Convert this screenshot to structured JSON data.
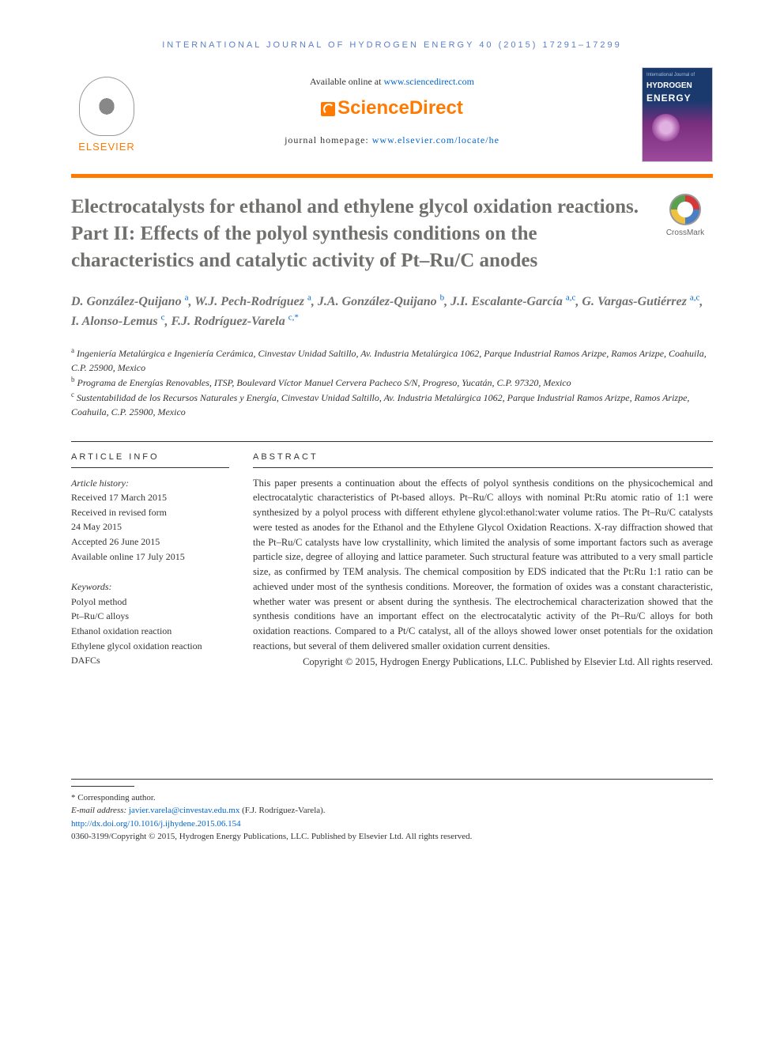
{
  "journal_header": "INTERNATIONAL JOURNAL OF HYDROGEN ENERGY 40 (2015) 17291–17299",
  "available_prefix": "Available online at ",
  "available_link": "www.sciencedirect.com",
  "sciencedirect": "ScienceDirect",
  "homepage_prefix": "journal homepage: ",
  "homepage_link": "www.elsevier.com/locate/he",
  "elsevier_label": "ELSEVIER",
  "cover": {
    "line1": "International Journal of",
    "line2": "HYDROGEN",
    "line3": "ENERGY"
  },
  "crossmark_label": "CrossMark",
  "title": "Electrocatalysts for ethanol and ethylene glycol oxidation reactions. Part II: Effects of the polyol synthesis conditions on the characteristics and catalytic activity of Pt–Ru/C anodes",
  "authors": [
    {
      "name": "D. González-Quijano",
      "aff": "a"
    },
    {
      "name": "W.J. Pech-Rodríguez",
      "aff": "a"
    },
    {
      "name": "J.A. González-Quijano",
      "aff": "b"
    },
    {
      "name": "J.I. Escalante-García",
      "aff": "a,c"
    },
    {
      "name": "G. Vargas-Gutiérrez",
      "aff": "a,c"
    },
    {
      "name": "I. Alonso-Lemus",
      "aff": "c"
    },
    {
      "name": "F.J. Rodríguez-Varela",
      "aff": "c,*"
    }
  ],
  "affiliations": [
    {
      "key": "a",
      "text": "Ingeniería Metalúrgica e Ingeniería Cerámica, Cinvestav Unidad Saltillo, Av. Industria Metalúrgica 1062, Parque Industrial Ramos Arizpe, Ramos Arizpe, Coahuila, C.P. 25900, Mexico"
    },
    {
      "key": "b",
      "text": "Programa de Energías Renovables, ITSP, Boulevard Víctor Manuel Cervera Pacheco S/N, Progreso, Yucatán, C.P. 97320, Mexico"
    },
    {
      "key": "c",
      "text": "Sustentabilidad de los Recursos Naturales y Energía, Cinvestav Unidad Saltillo, Av. Industria Metalúrgica 1062, Parque Industrial Ramos Arizpe, Ramos Arizpe, Coahuila, C.P. 25900, Mexico"
    }
  ],
  "article_info_heading": "ARTICLE INFO",
  "abstract_heading": "ABSTRACT",
  "history_label": "Article history:",
  "history": [
    "Received 17 March 2015",
    "Received in revised form",
    "24 May 2015",
    "Accepted 26 June 2015",
    "Available online 17 July 2015"
  ],
  "keywords_label": "Keywords:",
  "keywords": [
    "Polyol method",
    "Pt–Ru/C alloys",
    "Ethanol oxidation reaction",
    "Ethylene glycol oxidation reaction",
    "DAFCs"
  ],
  "abstract": "This paper presents a continuation about the effects of polyol synthesis conditions on the physicochemical and electrocatalytic characteristics of Pt-based alloys. Pt–Ru/C alloys with nominal Pt:Ru atomic ratio of 1:1 were synthesized by a polyol process with different ethylene glycol:ethanol:water volume ratios. The Pt–Ru/C catalysts were tested as anodes for the Ethanol and the Ethylene Glycol Oxidation Reactions. X-ray diffraction showed that the Pt–Ru/C catalysts have low crystallinity, which limited the analysis of some important factors such as average particle size, degree of alloying and lattice parameter. Such structural feature was attributed to a very small particle size, as confirmed by TEM analysis. The chemical composition by EDS indicated that the Pt:Ru 1:1 ratio can be achieved under most of the synthesis conditions. Moreover, the formation of oxides was a constant characteristic, whether water was present or absent during the synthesis. The electrochemical characterization showed that the synthesis conditions have an important effect on the electrocatalytic activity of the Pt–Ru/C alloys for both oxidation reactions. Compared to a Pt/C catalyst, all of the alloys showed lower onset potentials for the oxidation reactions, but several of them delivered smaller oxidation current densities.",
  "copyright_abstract": "Copyright © 2015, Hydrogen Energy Publications, LLC. Published by Elsevier Ltd. All rights reserved.",
  "footer": {
    "corresponding": "* Corresponding author.",
    "email_label": "E-mail address: ",
    "email": "javier.varela@cinvestav.edu.mx",
    "email_author": " (F.J. Rodríguez-Varela).",
    "doi": "http://dx.doi.org/10.1016/j.ijhydene.2015.06.154",
    "issn_copyright": "0360-3199/Copyright © 2015, Hydrogen Energy Publications, LLC. Published by Elsevier Ltd. All rights reserved."
  },
  "colors": {
    "orange": "#ff7a00",
    "link": "#0066cc",
    "heading_gray": "#70706e"
  }
}
